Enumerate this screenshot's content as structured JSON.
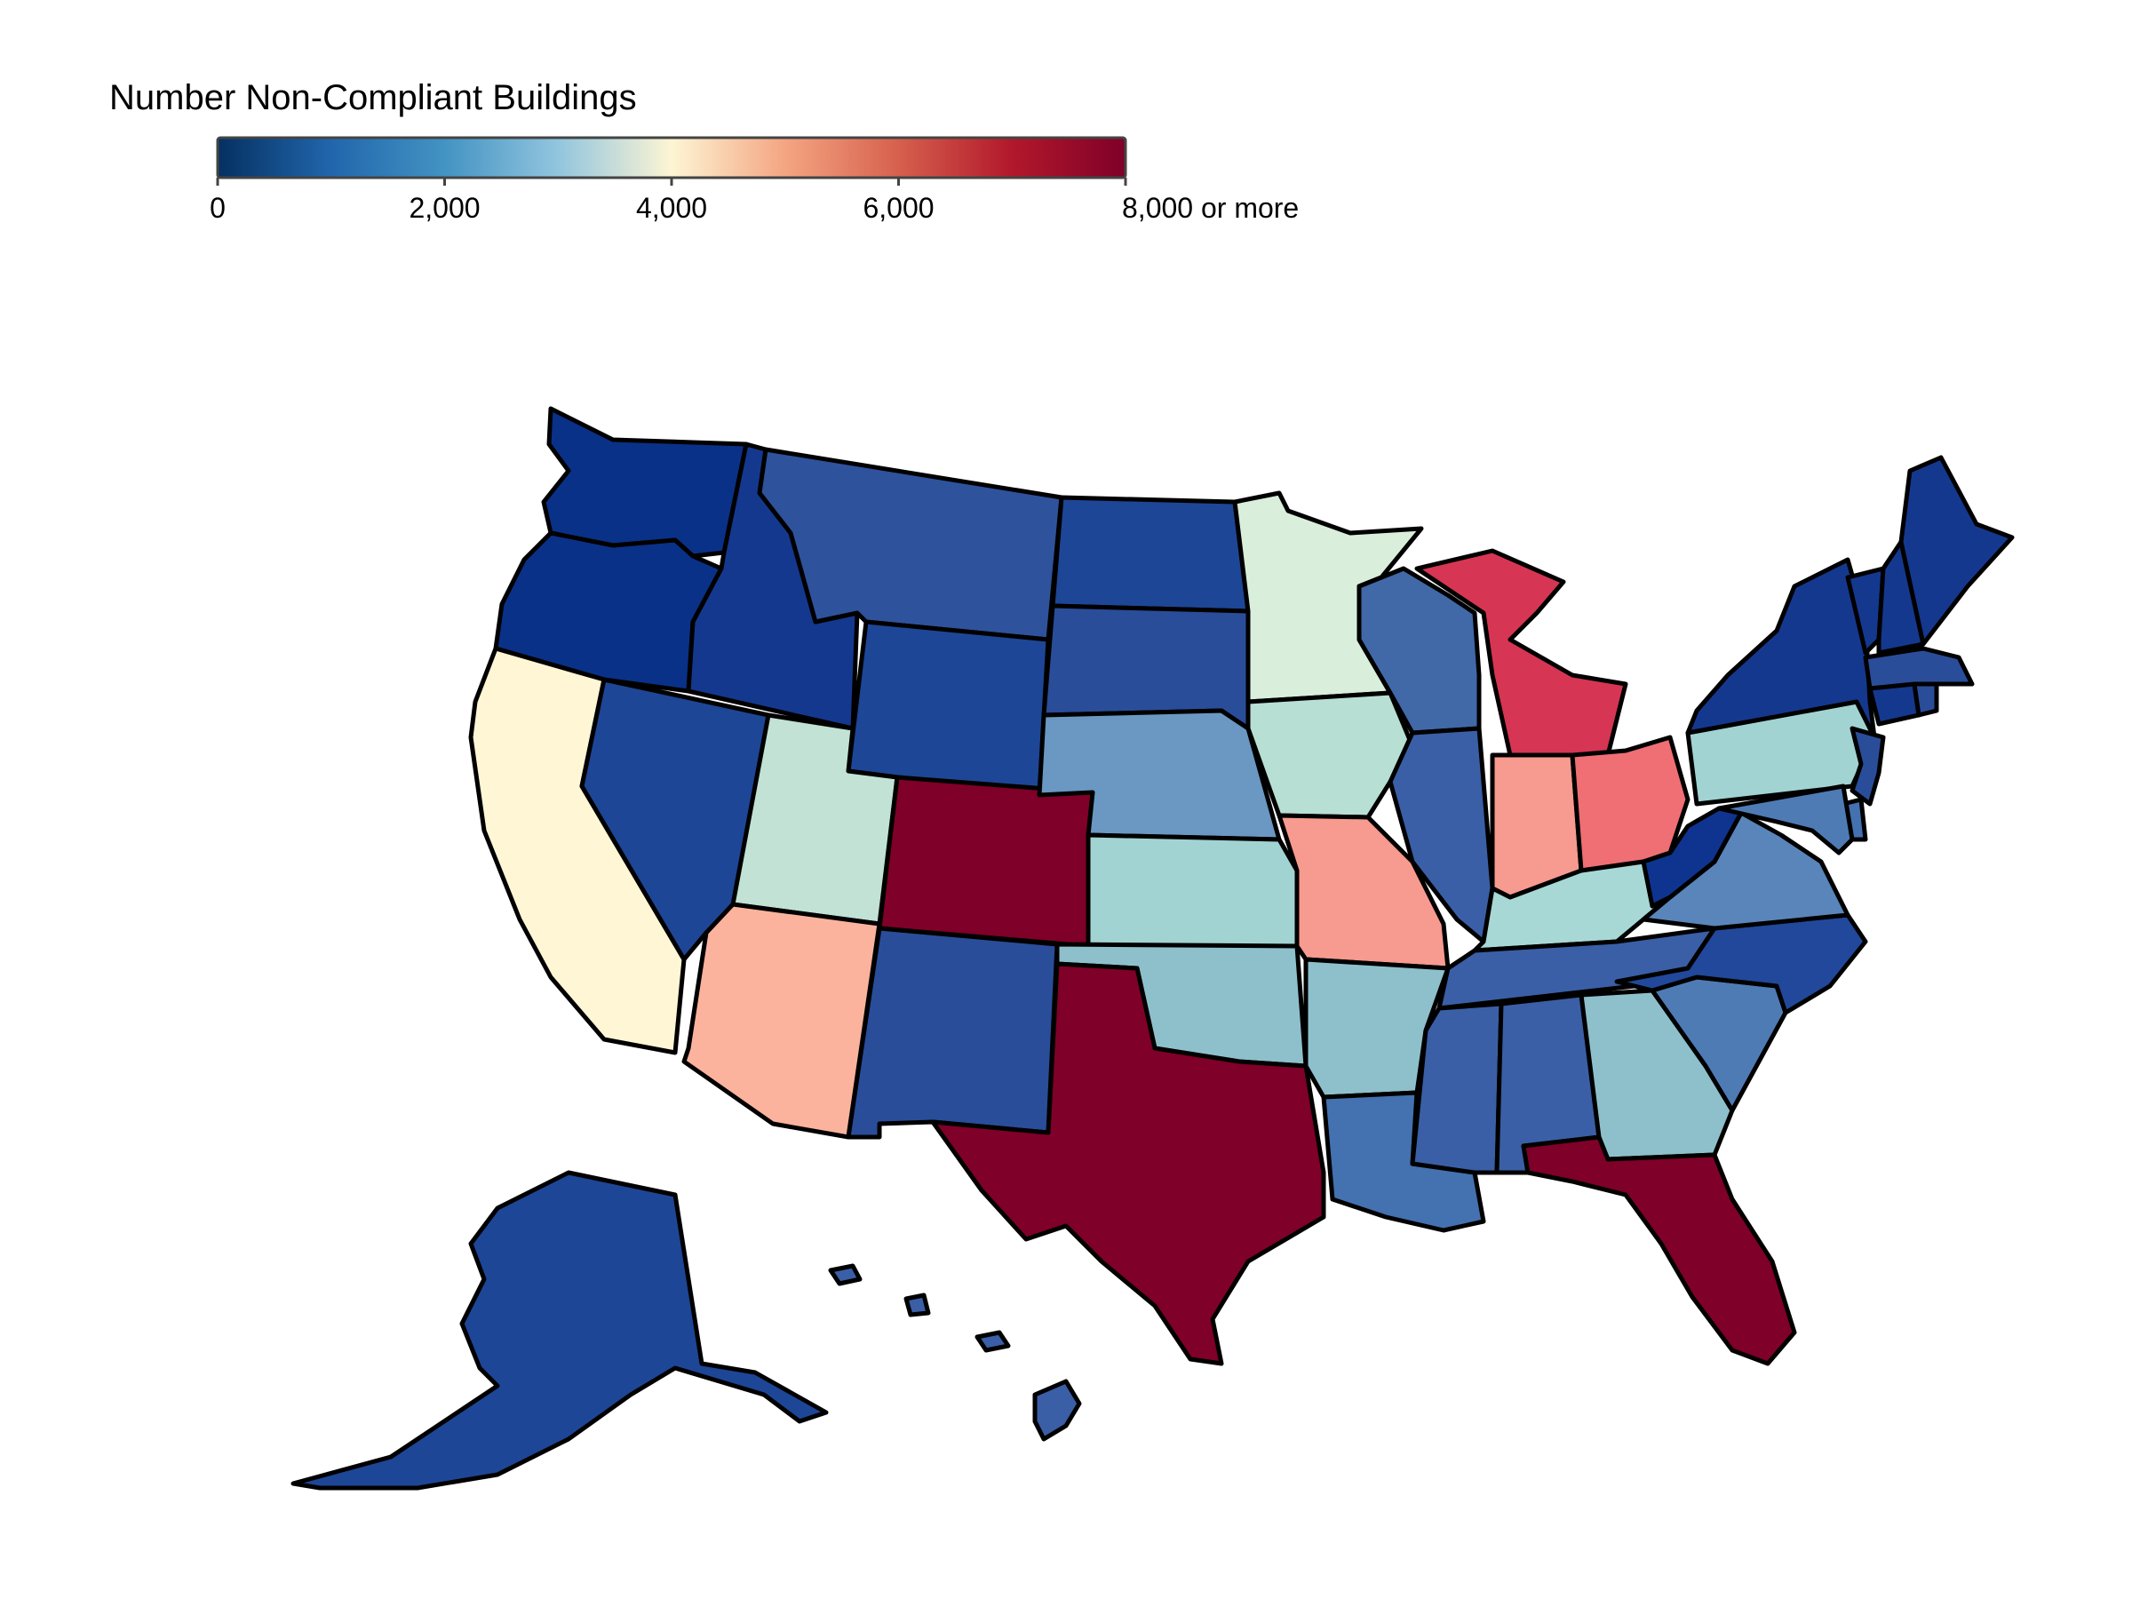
{
  "legend": {
    "title": "Number Non-Compliant Buildings",
    "ticks": [
      {
        "value": 0,
        "label": "0"
      },
      {
        "value": 2000,
        "label": "2,000"
      },
      {
        "value": 4000,
        "label": "4,000"
      },
      {
        "value": 6000,
        "label": "6,000"
      },
      {
        "value": 8000,
        "label": "8,000 or more"
      }
    ],
    "domain": [
      0,
      8000
    ],
    "palette": [
      "#053061",
      "#2166ac",
      "#4393c3",
      "#92c5de",
      "#fdf5d4",
      "#f4a582",
      "#d6604d",
      "#b2182b",
      "#7f0028"
    ]
  },
  "states": [
    {
      "name": "WA",
      "color": "#0a3188"
    },
    {
      "name": "OR",
      "color": "#0a3188"
    },
    {
      "name": "CA",
      "color": "#fff6d5"
    },
    {
      "name": "ID",
      "color": "#15388f"
    },
    {
      "name": "NV",
      "color": "#1e4696"
    },
    {
      "name": "MT",
      "color": "#2f529c"
    },
    {
      "name": "WY",
      "color": "#1e4696"
    },
    {
      "name": "UT",
      "color": "#c1e2d4"
    },
    {
      "name": "AZ",
      "color": "#fbb39d"
    },
    {
      "name": "CO",
      "color": "#7f0028"
    },
    {
      "name": "NM",
      "color": "#2a4d9a"
    },
    {
      "name": "ND",
      "color": "#1e4696"
    },
    {
      "name": "SD",
      "color": "#2a4d9a"
    },
    {
      "name": "NE",
      "color": "#6a98c2"
    },
    {
      "name": "KS",
      "color": "#a1d3d2"
    },
    {
      "name": "OK",
      "color": "#8ec0cc"
    },
    {
      "name": "TX",
      "color": "#7f0028"
    },
    {
      "name": "MN",
      "color": "#d9eedb"
    },
    {
      "name": "IA",
      "color": "#b8dfd3"
    },
    {
      "name": "MO",
      "color": "#f79a8f"
    },
    {
      "name": "AR",
      "color": "#8ec0cc"
    },
    {
      "name": "LA",
      "color": "#4471b0"
    },
    {
      "name": "WI",
      "color": "#4169a8"
    },
    {
      "name": "IL",
      "color": "#3a5fa6"
    },
    {
      "name": "MI",
      "color": "#d63653"
    },
    {
      "name": "IN",
      "color": "#f79a8f"
    },
    {
      "name": "OH",
      "color": "#ef6f74"
    },
    {
      "name": "KY",
      "color": "#a8d8d5"
    },
    {
      "name": "TN",
      "color": "#3a5fa6"
    },
    {
      "name": "MS",
      "color": "#3a5fa6"
    },
    {
      "name": "AL",
      "color": "#3a5fa6"
    },
    {
      "name": "GA",
      "color": "#8ec0cc"
    },
    {
      "name": "FL",
      "color": "#7f0028"
    },
    {
      "name": "SC",
      "color": "#4f7bb5"
    },
    {
      "name": "NC",
      "color": "#21489a"
    },
    {
      "name": "VA",
      "color": "#5a85ba"
    },
    {
      "name": "WV",
      "color": "#0f3490"
    },
    {
      "name": "PA",
      "color": "#a1d3d2"
    },
    {
      "name": "NY",
      "color": "#15388f"
    },
    {
      "name": "VT",
      "color": "#15388f"
    },
    {
      "name": "NH",
      "color": "#15388f"
    },
    {
      "name": "ME",
      "color": "#15388f"
    },
    {
      "name": "MA",
      "color": "#2a4d9a"
    },
    {
      "name": "CT",
      "color": "#15388f"
    },
    {
      "name": "RI",
      "color": "#2a4d9a"
    },
    {
      "name": "NJ",
      "color": "#2a4d9a"
    },
    {
      "name": "DE",
      "color": "#4471b0"
    },
    {
      "name": "MD",
      "color": "#4f7bb5"
    },
    {
      "name": "AK",
      "color": "#1e4696"
    },
    {
      "name": "HI",
      "color": "#3a5fa6"
    }
  ]
}
